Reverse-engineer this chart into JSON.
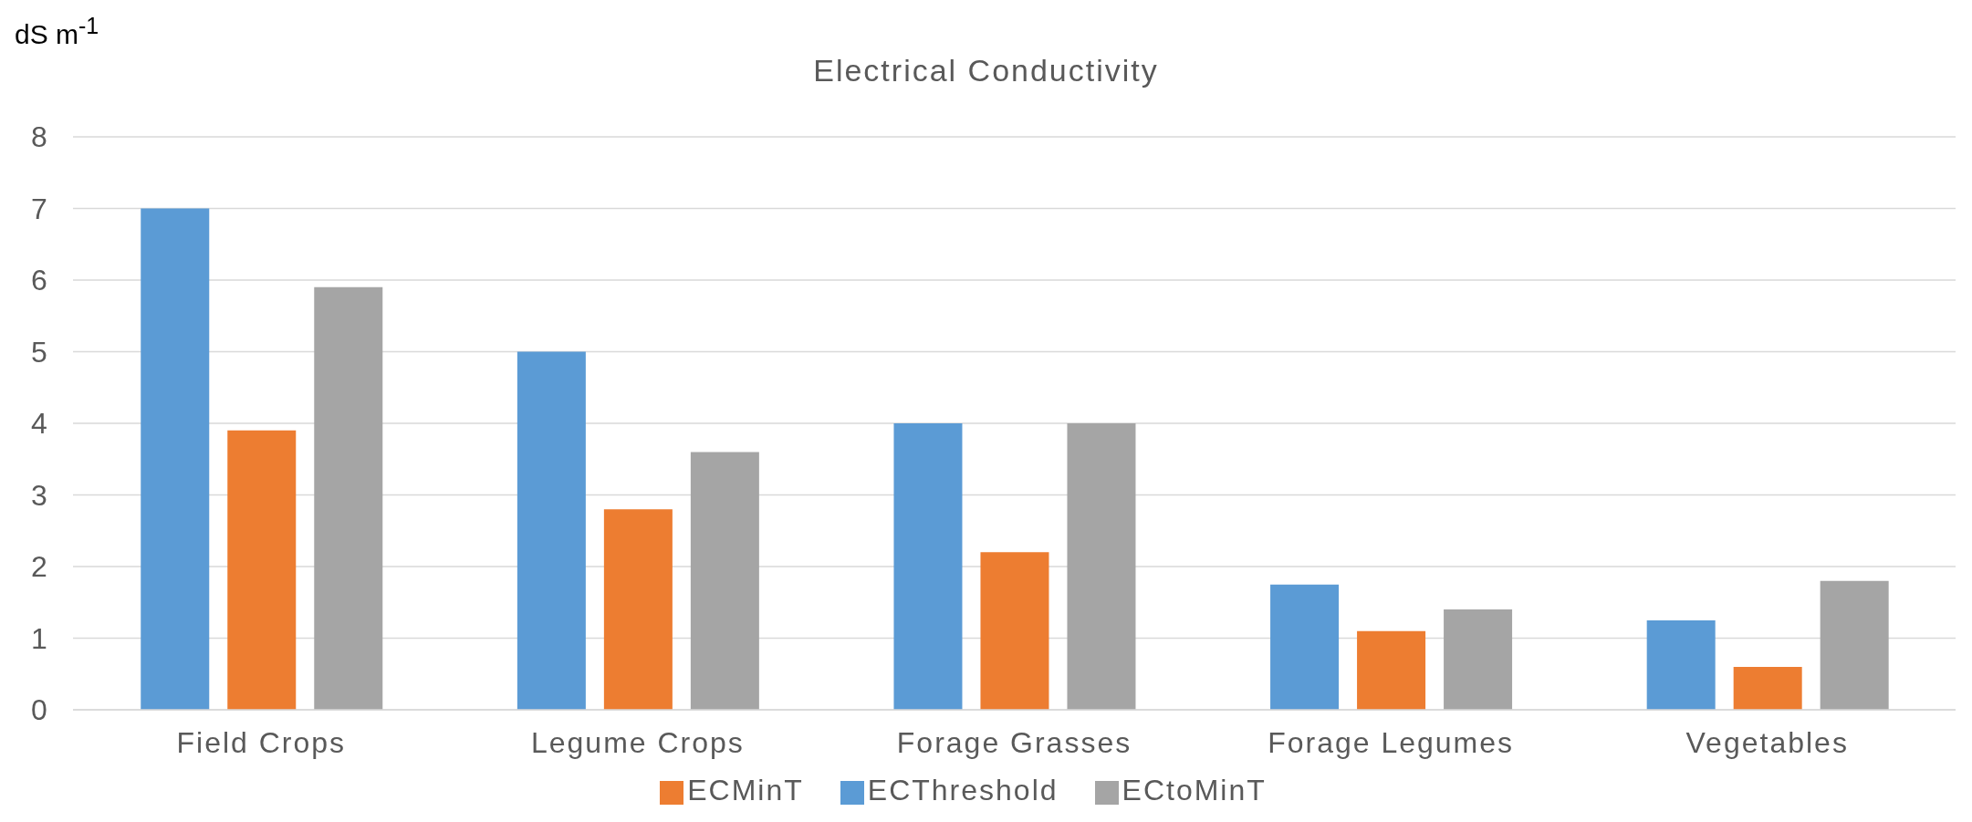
{
  "chart_data": {
    "type": "bar",
    "title": "Electrical Conductivity",
    "ylabel": "dS m$^{-1}$",
    "categories": [
      "Field Crops",
      "Legume Crops",
      "Forage Grasses",
      "Forage Legumes",
      "Vegetables"
    ],
    "series": [
      {
        "name": "ECThreshold",
        "color": "#5b9bd5",
        "values": [
          7,
          5,
          4,
          1.75,
          1.25
        ]
      },
      {
        "name": "ECMinT",
        "color": "#ed7d31",
        "values": [
          3.9,
          2.8,
          2.2,
          1.1,
          0.6
        ]
      },
      {
        "name": "ECtoMinT",
        "color": "#a5a5a5",
        "values": [
          5.9,
          3.6,
          4,
          1.4,
          1.8
        ]
      }
    ],
    "ylim": [
      0,
      8
    ],
    "yticks": [
      0,
      1,
      2,
      3,
      4,
      5,
      6,
      7,
      8
    ],
    "grid": "y",
    "legend": "bottom"
  }
}
